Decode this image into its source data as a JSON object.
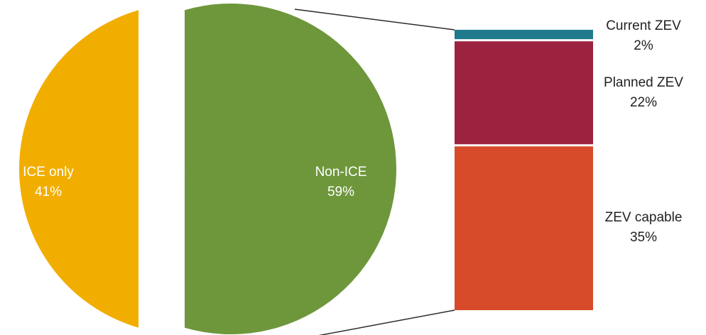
{
  "chart_data": {
    "type": "bar-of-pie",
    "pie": {
      "slices": [
        {
          "label": "ICE only",
          "value": 41,
          "value_label": "41%",
          "color": "#F1AE00"
        },
        {
          "label": "Non-ICE",
          "value": 59,
          "value_label": "59%",
          "color": "#6E973C",
          "exploded": true
        }
      ]
    },
    "breakdown_bar": {
      "of": "Non-ICE",
      "segments": [
        {
          "label": "Current ZEV",
          "value": 2,
          "value_label": "2%",
          "color": "#1F7A8C"
        },
        {
          "label": "Planned ZEV",
          "value": 22,
          "value_label": "22%",
          "color": "#9B2340"
        },
        {
          "label": "ZEV capable",
          "value": 35,
          "value_label": "35%",
          "color": "#D84B2A"
        }
      ]
    }
  }
}
